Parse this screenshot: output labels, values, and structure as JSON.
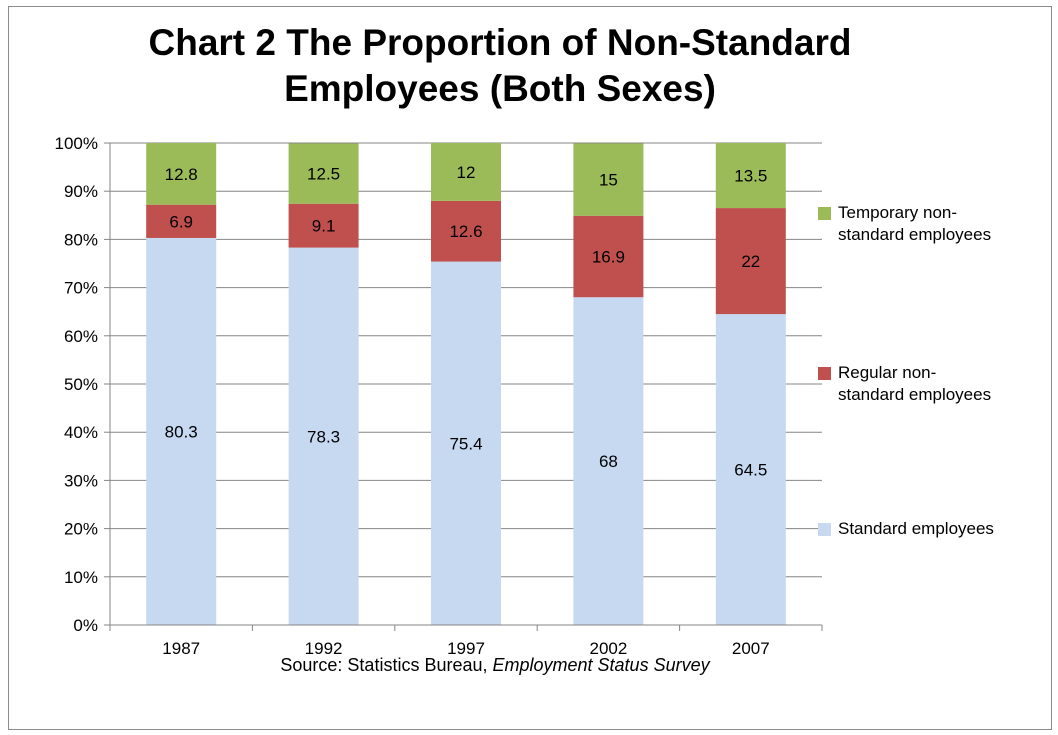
{
  "chart_data": {
    "type": "bar",
    "stacked": true,
    "percent_stacked": true,
    "title_line1": "Chart 2  The Proportion of Non-Standard",
    "title_line2": "Employees (Both Sexes)",
    "categories": [
      "1987",
      "1992",
      "1997",
      "2002",
      "2007"
    ],
    "series": [
      {
        "name": "Standard employees",
        "values": [
          80.3,
          78.3,
          75.4,
          68,
          64.5
        ],
        "color": "#c6d9f1"
      },
      {
        "name": "Regular non-standard employees",
        "values": [
          6.9,
          9.1,
          12.6,
          16.9,
          22
        ],
        "color": "#c0504d"
      },
      {
        "name": "Temporary non-standard employees",
        "values": [
          12.8,
          12.5,
          12,
          15,
          13.5
        ],
        "color": "#9bbb59"
      }
    ],
    "data_labels": [
      [
        "80.3",
        "78.3",
        "75.4",
        "68",
        "64.5"
      ],
      [
        "6.9",
        "9.1",
        "12.6",
        "16.9",
        "22"
      ],
      [
        "12.8",
        "12.5",
        "12",
        "15",
        "13.5"
      ]
    ],
    "y_ticks": [
      "0%",
      "10%",
      "20%",
      "30%",
      "40%",
      "50%",
      "60%",
      "70%",
      "80%",
      "90%",
      "100%"
    ],
    "ylim": [
      0,
      100
    ],
    "grid": true,
    "legend_position": "right",
    "legend": [
      {
        "line1": "Temporary non-",
        "line2": "standard employees",
        "color": "#9bbb59"
      },
      {
        "line1": "Regular non-",
        "line2": "standard employees",
        "color": "#c0504d"
      },
      {
        "line1": "Standard employees",
        "line2": "",
        "color": "#c6d9f1"
      }
    ],
    "source_prefix": "Source: Statistics Bureau, ",
    "source_italic": "Employment Status Survey"
  }
}
